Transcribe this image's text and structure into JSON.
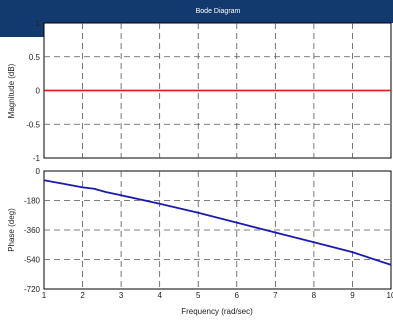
{
  "chart_data": [
    {
      "type": "line",
      "title": "Bode Diagram",
      "ylabel": "Magnitude (dB)",
      "xlabel": "",
      "xlim": [
        1,
        10
      ],
      "ylim": [
        -1,
        1
      ],
      "grid": true,
      "x_ticks": [
        "1",
        "2",
        "3",
        "4",
        "5",
        "6",
        "7",
        "8",
        "9",
        "10"
      ],
      "y_ticks": [
        "1",
        "0.5",
        "0",
        "-0.5",
        "-1"
      ],
      "series": [
        {
          "x": [
            1,
            10
          ],
          "y": [
            0,
            0
          ],
          "color": "#e02020"
        }
      ]
    },
    {
      "type": "line",
      "title": "",
      "ylabel": "Phase (deg)",
      "xlabel": "Frequency  (rad/sec)",
      "xlim": [
        1,
        10
      ],
      "ylim": [
        -720,
        0
      ],
      "grid": true,
      "x_ticks": [
        "1",
        "2",
        "3",
        "4",
        "5",
        "6",
        "7",
        "8",
        "9",
        "10"
      ],
      "y_ticks": [
        "0",
        "-180",
        "-360",
        "-540",
        "-720"
      ],
      "series": [
        {
          "x": [
            1,
            1.5,
            2,
            2.3,
            2.6,
            3,
            4,
            5,
            6,
            7,
            8,
            9,
            10
          ],
          "y": [
            -57,
            -78,
            -100,
            -108,
            -128,
            -148,
            -200,
            -255,
            -315,
            -375,
            -435,
            -495,
            -573
          ],
          "color": "#1a1ab0"
        }
      ]
    }
  ],
  "colors": {
    "title_bar": "#123a6e",
    "grid": "#555555",
    "axes": "#000000"
  }
}
